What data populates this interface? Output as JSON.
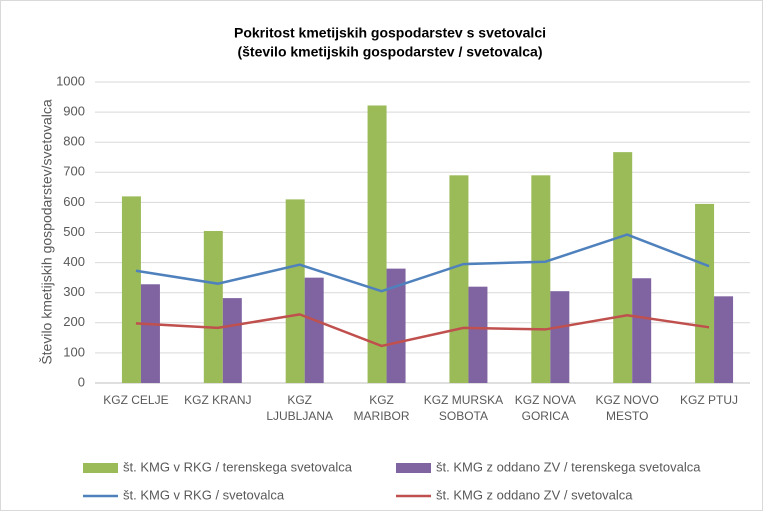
{
  "chart_data": {
    "type": "bar_line",
    "title": [
      "Pokritost kmetijskih gospodarstev s svetovalci",
      "(število kmetijskih gospodarstev / svetovalca)"
    ],
    "y_label": "Število kmetijskih gospodarstev/svetovalca",
    "categories": [
      "KGZ CELJE",
      "KGZ KRANJ",
      "KGZ LJUBLJANA",
      "KGZ MARIBOR",
      "KGZ MURSKA SOBOTA",
      "KGZ NOVA GORICA",
      "KGZ NOVO MESTO",
      "KGZ PTUJ"
    ],
    "series": [
      {
        "name": "št. KMG v RKG / terenskega svetovalca",
        "kind": "bar",
        "color": "#9bbb59",
        "values": [
          620,
          505,
          610,
          922,
          690,
          690,
          767,
          595
        ]
      },
      {
        "name": "št. KMG z oddano ZV / terenskega svetovalca",
        "kind": "bar",
        "color": "#8064a2",
        "values": [
          328,
          282,
          350,
          380,
          320,
          305,
          348,
          288
        ]
      },
      {
        "name": "št. KMG v RKG / svetovalca",
        "kind": "line",
        "color": "#4f81bd",
        "values": [
          373,
          330,
          393,
          305,
          395,
          403,
          493,
          388
        ]
      },
      {
        "name": "št. KMG z oddano ZV / svetovalca",
        "kind": "line",
        "color": "#c0504d",
        "values": [
          198,
          183,
          228,
          123,
          183,
          178,
          225,
          185
        ]
      }
    ],
    "ylim": [
      0,
      1000
    ],
    "yticks": [
      0,
      100,
      200,
      300,
      400,
      500,
      600,
      700,
      800,
      900,
      1000
    ],
    "grid": true,
    "legend": "bottom"
  }
}
